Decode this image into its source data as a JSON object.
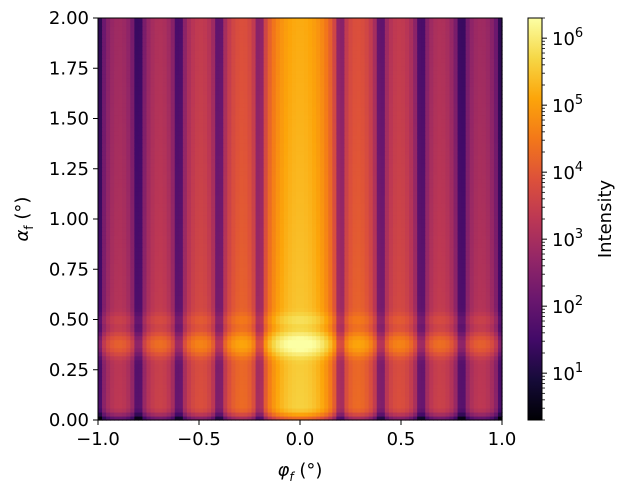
{
  "chart_data": {
    "type": "heatmap",
    "title": "",
    "xlabel": {
      "main": "φ",
      "sub": "f",
      "unit": " (°)"
    },
    "ylabel": {
      "main": "α",
      "sub": "f",
      "unit": " (°)"
    },
    "xlim": [
      -1.0,
      1.0
    ],
    "ylim": [
      0.0,
      2.0
    ],
    "x_ticks": [
      -1.0,
      -0.5,
      0.0,
      0.5,
      1.0
    ],
    "x_tick_labels": [
      "−1.0",
      "−0.5",
      "0.0",
      "0.5",
      "1.0"
    ],
    "y_ticks": [
      0.0,
      0.25,
      0.5,
      0.75,
      1.0,
      1.25,
      1.5,
      1.75,
      2.0
    ],
    "y_tick_labels": [
      "0.00",
      "0.25",
      "0.50",
      "0.75",
      "1.00",
      "1.25",
      "1.50",
      "1.75",
      "2.00"
    ],
    "colorbar": {
      "label": "Intensity",
      "scale": "log",
      "range": [
        2,
        2000000
      ],
      "colormap": "inferno",
      "ticks": [
        {
          "value": 10,
          "base": "10",
          "exp": "1"
        },
        {
          "value": 100,
          "base": "10",
          "exp": "2"
        },
        {
          "value": 1000,
          "base": "10",
          "exp": "3"
        },
        {
          "value": 10000,
          "base": "10",
          "exp": "4"
        },
        {
          "value": 100000,
          "base": "10",
          "exp": "5"
        },
        {
          "value": 1000000,
          "base": "10",
          "exp": "6"
        }
      ]
    },
    "features": {
      "central_peak_phi": 0.0,
      "peak_intensity": 1800000,
      "dark_minima_phi": [
        -0.79,
        -0.59,
        -0.39,
        0.39,
        0.59,
        0.79
      ],
      "bright_band_alpha": 0.38,
      "secondary_band_alpha": 0.5
    }
  }
}
